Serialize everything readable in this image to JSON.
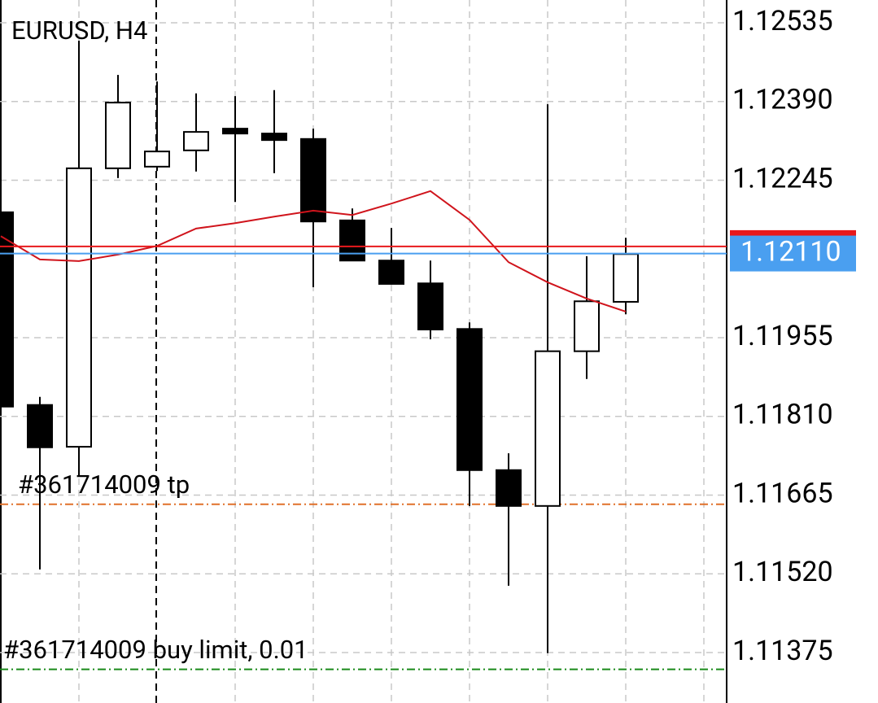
{
  "chart_data": {
    "type": "candlestick",
    "title": "EURUSD, H4",
    "ylim": [
      1.11282,
      1.12577
    ],
    "yticks": [
      1.12535,
      {
        "value": 1.1239,
        "label": "1.12390"
      },
      1.12245,
      1.11955,
      {
        "value": 1.1181,
        "label": "1.11810"
      },
      1.11665,
      {
        "value": 1.1152,
        "label": "1.11520"
      },
      1.11375
    ],
    "grid": true,
    "bull_color": "#ffffff",
    "bear_color": "#000000",
    "open": [
      1.12186,
      1.11831,
      1.11754,
      1.12267,
      1.1227,
      1.123,
      1.1234,
      1.12331,
      1.12321,
      1.12171,
      1.12097,
      1.12055,
      1.11971,
      1.11711,
      1.11645,
      1.1193,
      1.12021
    ],
    "high": [
      1.1227,
      1.11846,
      1.12502,
      1.12439,
      1.12427,
      1.12405,
      1.124,
      1.12411,
      1.1234,
      1.12193,
      1.12157,
      1.12097,
      1.11983,
      1.11742,
      1.12385,
      1.12105,
      1.12139
    ],
    "low": [
      1.11828,
      1.11528,
      1.117,
      1.12249,
      1.12262,
      1.12261,
      1.12205,
      1.12258,
      1.12048,
      1.12097,
      1.12054,
      1.11952,
      1.11645,
      1.11498,
      1.11374,
      1.11879,
      1.11998
    ],
    "close": [
      1.11828,
      1.11753,
      1.12267,
      1.12388,
      1.12298,
      1.12334,
      1.12331,
      1.12319,
      1.12169,
      1.12097,
      1.12054,
      1.1197,
      1.11711,
      1.11645,
      1.1193,
      1.12022,
      1.12109
    ],
    "series": [
      {
        "color": "#d0141c",
        "values": [
          1.12142,
          1.12099,
          1.12096,
          1.12108,
          1.12124,
          1.12156,
          1.12166,
          1.12178,
          1.12189,
          1.12181,
          1.12202,
          1.12225,
          1.12172,
          1.12094,
          1.12057,
          1.12027,
          1.12003
        ]
      }
    ],
    "bid": {
      "value": 1.1211,
      "label": "1.12110",
      "color": "#4a9ff0"
    },
    "ask": {
      "value": 1.12123,
      "color": "#e8191c"
    },
    "orders": [
      {
        "label": "#361714009 tp",
        "value": 1.11648,
        "color": "#e0702a"
      },
      {
        "label": "#361714009 buy limit, 0.01",
        "value": 1.11344,
        "color": "#1a8a1a"
      }
    ]
  }
}
